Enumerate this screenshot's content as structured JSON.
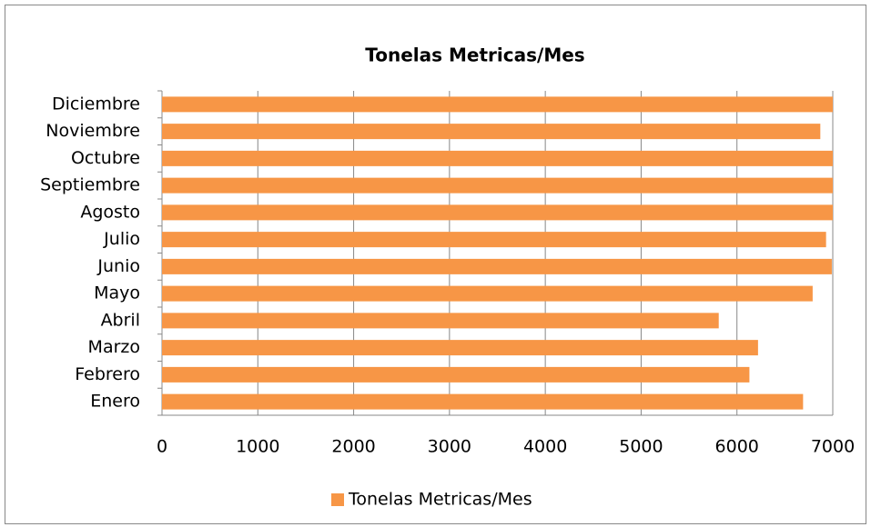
{
  "chart_data": {
    "type": "bar",
    "orientation": "horizontal",
    "title": "Tonelas Metricas/Mes",
    "categories": [
      "Enero",
      "Febrero",
      "Marzo",
      "Abril",
      "Mayo",
      "Junio",
      "Julio",
      "Agosto",
      "Septiembre",
      "Octubre",
      "Noviembre",
      "Diciembre"
    ],
    "series": [
      {
        "name": "Tonelas Metricas/Mes",
        "color": "#f79646",
        "values": [
          6690,
          6130,
          6220,
          5810,
          6790,
          6990,
          6930,
          7000,
          7000,
          7000,
          6870,
          7000
        ]
      }
    ],
    "xlim": [
      0,
      7000
    ],
    "xticks": [
      0,
      1000,
      2000,
      3000,
      4000,
      5000,
      6000,
      7000
    ],
    "grid": true,
    "legend": "bottom"
  }
}
